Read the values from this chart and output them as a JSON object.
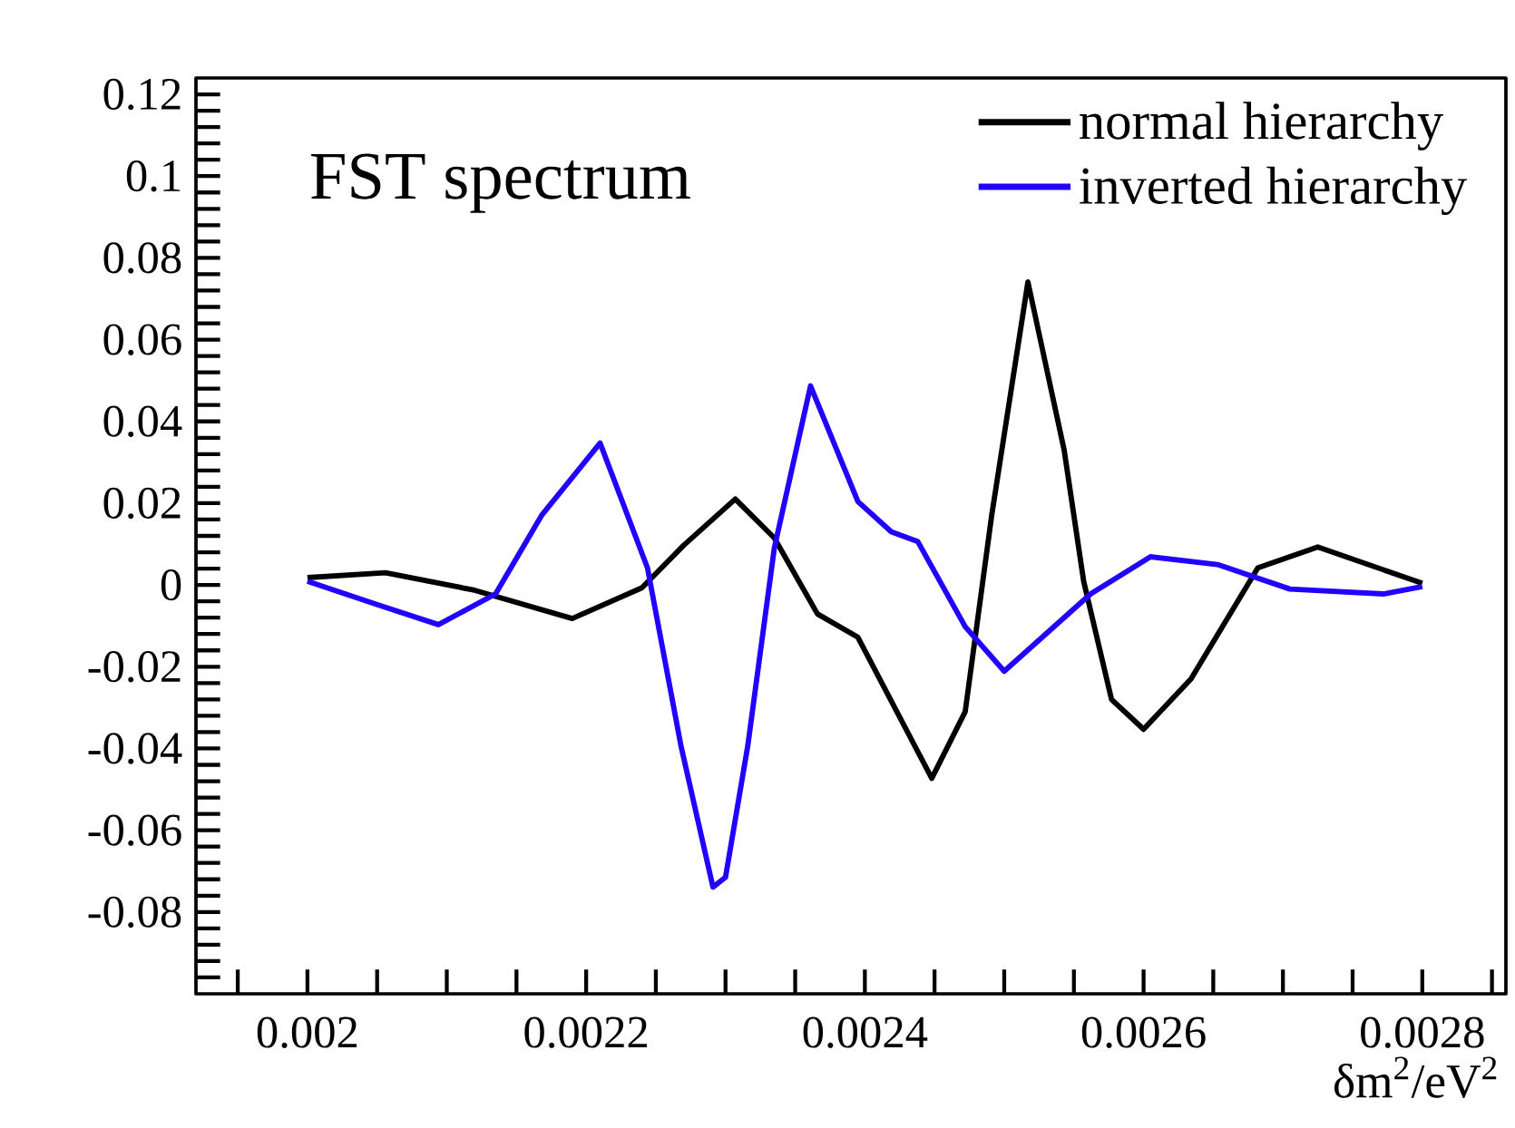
{
  "chart_data": {
    "type": "line",
    "title": "FST spectrum",
    "xlabel": "δm$^{2}$/eV$^{2}$",
    "xlim": [
      0.00192,
      0.00286
    ],
    "xticks": [
      {
        "value": 0.00195,
        "label": null
      },
      0.002,
      {
        "value": 0.00205,
        "label": null
      },
      {
        "value": 0.0021,
        "label": null
      },
      {
        "value": 0.00215,
        "label": null
      },
      0.0022,
      {
        "value": 0.00225,
        "label": null
      },
      {
        "value": 0.0023,
        "label": null
      },
      {
        "value": 0.00235,
        "label": null
      },
      0.0024,
      {
        "value": 0.00245,
        "label": null
      },
      {
        "value": 0.0025,
        "label": null
      },
      {
        "value": 0.00255,
        "label": null
      },
      0.0026,
      {
        "value": 0.00265,
        "label": null
      },
      {
        "value": 0.0027,
        "label": null
      },
      {
        "value": 0.00275,
        "label": null
      },
      0.0028,
      {
        "value": 0.00285,
        "label": null
      }
    ],
    "ylim": [
      -0.1,
      0.124
    ],
    "yticks": [
      {
        "value": -0.096,
        "label": null
      },
      {
        "value": -0.092,
        "label": null
      },
      {
        "value": -0.088,
        "label": null
      },
      {
        "value": -0.084,
        "label": null
      },
      -0.08,
      {
        "value": -0.076,
        "label": null
      },
      {
        "value": -0.072,
        "label": null
      },
      {
        "value": -0.068,
        "label": null
      },
      {
        "value": -0.064,
        "label": null
      },
      -0.06,
      {
        "value": -0.056,
        "label": null
      },
      {
        "value": -0.052,
        "label": null
      },
      {
        "value": -0.048,
        "label": null
      },
      {
        "value": -0.044,
        "label": null
      },
      -0.04,
      {
        "value": -0.036,
        "label": null
      },
      {
        "value": -0.032,
        "label": null
      },
      {
        "value": -0.028,
        "label": null
      },
      {
        "value": -0.024,
        "label": null
      },
      -0.02,
      {
        "value": -0.016,
        "label": null
      },
      {
        "value": -0.012,
        "label": null
      },
      {
        "value": -0.008,
        "label": null
      },
      {
        "value": -0.004,
        "label": null
      },
      0,
      {
        "value": 0.004,
        "label": null
      },
      {
        "value": 0.008,
        "label": null
      },
      {
        "value": 0.012,
        "label": null
      },
      {
        "value": 0.016,
        "label": null
      },
      0.02,
      {
        "value": 0.024,
        "label": null
      },
      {
        "value": 0.028,
        "label": null
      },
      {
        "value": 0.032,
        "label": null
      },
      {
        "value": 0.036,
        "label": null
      },
      0.04,
      {
        "value": 0.044,
        "label": null
      },
      {
        "value": 0.048,
        "label": null
      },
      {
        "value": 0.052,
        "label": null
      },
      {
        "value": 0.056,
        "label": null
      },
      0.06,
      {
        "value": 0.064,
        "label": null
      },
      {
        "value": 0.068,
        "label": null
      },
      {
        "value": 0.072,
        "label": null
      },
      {
        "value": 0.076,
        "label": null
      },
      0.08,
      {
        "value": 0.084,
        "label": null
      },
      {
        "value": 0.088,
        "label": null
      },
      {
        "value": 0.092,
        "label": null
      },
      {
        "value": 0.096,
        "label": null
      },
      0.1,
      {
        "value": 0.104,
        "label": null
      },
      {
        "value": 0.108,
        "label": null
      },
      {
        "value": 0.112,
        "label": null
      },
      {
        "value": 0.116,
        "label": null
      },
      0.12
    ],
    "grid": false,
    "legend": "top right",
    "series": [
      {
        "name": "normal hierarchy",
        "color": "#000000",
        "x": [
          0.002,
          0.002056,
          0.00212,
          0.00219,
          0.00224,
          0.00227,
          0.002307,
          0.002335,
          0.002366,
          0.002395,
          0.002448,
          0.002472,
          0.002491,
          0.002517,
          0.002543,
          0.002557,
          0.002577,
          0.0026,
          0.002634,
          0.002682,
          0.002725,
          0.0028
        ],
        "values": [
          0.0018,
          0.003,
          -0.0013,
          -0.0082,
          -0.0007,
          0.0097,
          0.021,
          0.0115,
          -0.0071,
          -0.0128,
          -0.0473,
          -0.031,
          0.017,
          0.0741,
          0.033,
          0.0009,
          -0.028,
          -0.0353,
          -0.023,
          0.0042,
          0.0093,
          0.0004
        ]
      },
      {
        "name": "inverted hierarchy",
        "color": "#2200ff",
        "x": [
          0.002,
          0.002049,
          0.002094,
          0.002135,
          0.002168,
          0.00221,
          0.002244,
          0.002268,
          0.002291,
          0.0023,
          0.002316,
          0.002335,
          0.002361,
          0.002395,
          0.002419,
          0.002438,
          0.002472,
          0.0025,
          0.002562,
          0.002605,
          0.002653,
          0.002705,
          0.002772,
          0.0028
        ],
        "values": [
          0.0009,
          -0.0047,
          -0.0097,
          -0.0022,
          0.017,
          0.0347,
          0.0042,
          -0.0393,
          -0.0739,
          -0.0715,
          -0.0393,
          0.009,
          0.0487,
          0.0204,
          0.013,
          0.0106,
          -0.0102,
          -0.0211,
          -0.0022,
          0.0069,
          0.005,
          -0.001,
          -0.0022,
          -0.0004
        ]
      }
    ]
  }
}
